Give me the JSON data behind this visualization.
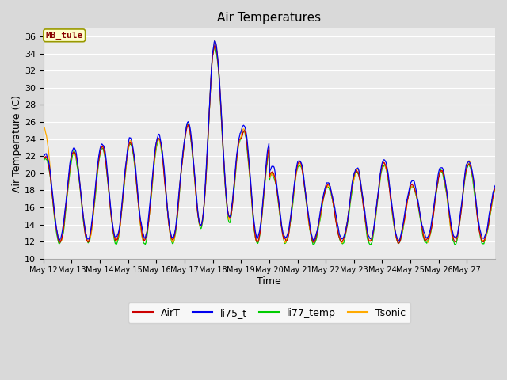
{
  "title": "Air Temperatures",
  "xlabel": "Time",
  "ylabel": "Air Temperature (C)",
  "annotation": "MB_tule",
  "ylim": [
    10,
    37
  ],
  "yticks": [
    10,
    12,
    14,
    16,
    18,
    20,
    22,
    24,
    26,
    28,
    30,
    32,
    34,
    36
  ],
  "x_labels": [
    "May 12",
    "May 13",
    "May 14",
    "May 15",
    "May 16",
    "May 17",
    "May 18",
    "May 19",
    "May 20",
    "May 21",
    "May 22",
    "May 23",
    "May 24",
    "May 25",
    "May 26",
    "May 27"
  ],
  "colors": {
    "AirT": "#cc0000",
    "li75_t": "#0000ee",
    "li77_temp": "#00cc00",
    "Tsonic": "#ffaa00"
  },
  "bg_color": "#d9d9d9",
  "plot_bg": "#ebebeb",
  "annotation_bg": "#ffffcc",
  "annotation_border": "#999900",
  "annotation_text_color": "#880000",
  "grid_color": "#ffffff",
  "n_days": 16,
  "samples_per_day": 48
}
